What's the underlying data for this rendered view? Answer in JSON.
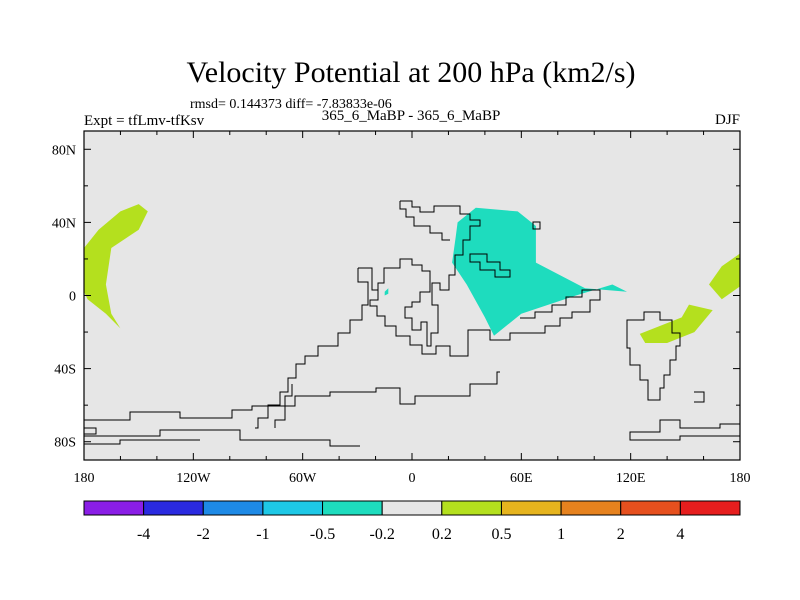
{
  "chart_data": {
    "type": "contour-map",
    "title": "Velocity Potential at 200 hPa (km2/s)",
    "stats": "rmsd= 0.144373 diff= -7.83833e-06",
    "left_label": "Expt = tfLmv-tfKsv",
    "center_label": "365_6_MaBP - 365_6_MaBP",
    "right_label": "DJF",
    "x_ticks": [
      {
        "value": -180,
        "label": "180"
      },
      {
        "value": -120,
        "label": "120W"
      },
      {
        "value": -60,
        "label": "60W"
      },
      {
        "value": 0,
        "label": "0"
      },
      {
        "value": 60,
        "label": "60E"
      },
      {
        "value": 120,
        "label": "120E"
      },
      {
        "value": 180,
        "label": "180"
      }
    ],
    "y_ticks": [
      {
        "value": 80,
        "label": "80N"
      },
      {
        "value": 40,
        "label": "40N"
      },
      {
        "value": 0,
        "label": "0"
      },
      {
        "value": -40,
        "label": "40S"
      },
      {
        "value": -80,
        "label": "80S"
      }
    ],
    "xlim": [
      -180,
      180
    ],
    "ylim": [
      -90,
      90
    ],
    "colorbar": {
      "labels": [
        "-4",
        "-2",
        "-1",
        "-0.5",
        "-0.2",
        "0.2",
        "0.5",
        "1",
        "2",
        "4"
      ],
      "colors": [
        "#8a1ee6",
        "#2a2ae0",
        "#1e8ae6",
        "#1ec8e6",
        "#1edcbe",
        "#e6e6e6",
        "#b4e01e",
        "#e6b41e",
        "#e6821e",
        "#e6501e",
        "#e61e1e"
      ]
    },
    "regions": [
      {
        "name": "positive-anomaly-north-pacific",
        "range": "0.2 to 0.5",
        "color": "#b4e01e",
        "lonlat": [
          [
            -180,
            26
          ],
          [
            -172,
            36
          ],
          [
            -160,
            46
          ],
          [
            -150,
            50
          ],
          [
            -145,
            46
          ],
          [
            -150,
            36
          ],
          [
            -165,
            26
          ],
          [
            -168,
            6
          ],
          [
            -165,
            -10
          ],
          [
            -160,
            -18
          ],
          [
            -168,
            -10
          ],
          [
            -178,
            -2
          ],
          [
            -180,
            2
          ]
        ]
      },
      {
        "name": "negative-anomaly-africa-asia",
        "range": "-0.5 to -0.2",
        "color": "#1edcbe",
        "lonlat": [
          [
            25,
            40
          ],
          [
            35,
            48
          ],
          [
            58,
            46
          ],
          [
            68,
            38
          ],
          [
            68,
            18
          ],
          [
            95,
            4
          ],
          [
            118,
            2
          ],
          [
            110,
            6
          ],
          [
            90,
            0
          ],
          [
            60,
            -10
          ],
          [
            45,
            -22
          ],
          [
            40,
            -12
          ],
          [
            30,
            6
          ],
          [
            22,
            18
          ],
          [
            24,
            32
          ]
        ]
      },
      {
        "name": "negative-anomaly-small-atlantic",
        "range": "-0.5 to -0.2",
        "color": "#1edcbe",
        "lonlat": [
          [
            -15,
            2
          ],
          [
            -13,
            4
          ],
          [
            -13,
            1
          ],
          [
            -15,
            0
          ]
        ]
      },
      {
        "name": "positive-anomaly-east-pacific",
        "range": "0.2 to 0.5",
        "color": "#b4e01e",
        "lonlat": [
          [
            163,
            6
          ],
          [
            170,
            16
          ],
          [
            180,
            23
          ],
          [
            180,
            5
          ],
          [
            170,
            -2
          ]
        ]
      },
      {
        "name": "positive-anomaly-australia",
        "range": "0.2 to 0.5",
        "color": "#b4e01e",
        "lonlat": [
          [
            125,
            -21
          ],
          [
            148,
            -12
          ],
          [
            152,
            -5
          ],
          [
            165,
            -8
          ],
          [
            155,
            -20
          ],
          [
            140,
            -26
          ],
          [
            128,
            -26
          ]
        ]
      }
    ]
  }
}
